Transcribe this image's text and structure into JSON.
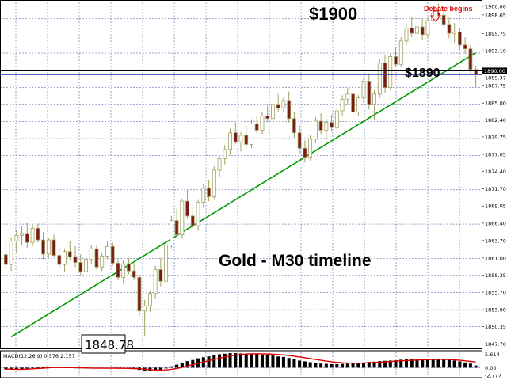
{
  "chart_data": {
    "type": "candlestick",
    "title": "Gold - M30 timeline",
    "y_axis_labels": [
      "1900.00",
      "1898.65",
      "1895.75",
      "1893.10",
      "1890.00",
      "1889.37",
      "1887.75",
      "1885.00",
      "1882.40",
      "1879.75",
      "1877.05",
      "1874.40",
      "1871.70",
      "1869.05",
      "1866.40",
      "1863.70",
      "1861.00",
      "1858.35",
      "1855.70",
      "1853.00",
      "1850.35",
      "1847.70"
    ],
    "current_price_tag": "1890.00",
    "bid_tag": "1889.37",
    "ylim": [
      1847.0,
      1900.6
    ],
    "grid": true,
    "candles": [
      [
        1861.5,
        1863.5,
        1859.5,
        1860.0
      ],
      [
        1860.0,
        1864.2,
        1859.0,
        1863.6
      ],
      [
        1863.6,
        1865.4,
        1861.8,
        1864.5
      ],
      [
        1864.5,
        1866.0,
        1863.0,
        1864.8
      ],
      [
        1864.8,
        1866.4,
        1862.6,
        1863.4
      ],
      [
        1863.4,
        1866.2,
        1862.8,
        1865.6
      ],
      [
        1865.6,
        1866.3,
        1863.4,
        1863.8
      ],
      [
        1863.8,
        1865.0,
        1860.8,
        1861.6
      ],
      [
        1861.6,
        1864.1,
        1861.0,
        1863.8
      ],
      [
        1863.8,
        1864.6,
        1861.1,
        1861.4
      ],
      [
        1861.4,
        1862.6,
        1859.4,
        1860.0
      ],
      [
        1860.0,
        1862.4,
        1858.8,
        1862.0
      ],
      [
        1862.0,
        1863.6,
        1860.7,
        1861.2
      ],
      [
        1861.2,
        1862.8,
        1859.6,
        1860.3
      ],
      [
        1860.3,
        1861.6,
        1858.4,
        1858.9
      ],
      [
        1858.9,
        1861.2,
        1858.2,
        1860.8
      ],
      [
        1860.8,
        1863.0,
        1860.0,
        1862.4
      ],
      [
        1862.4,
        1863.0,
        1859.2,
        1859.6
      ],
      [
        1859.6,
        1861.8,
        1859.0,
        1861.3
      ],
      [
        1861.3,
        1863.6,
        1860.8,
        1862.8
      ],
      [
        1862.8,
        1863.4,
        1859.8,
        1860.2
      ],
      [
        1860.2,
        1860.8,
        1857.5,
        1858.0
      ],
      [
        1858.0,
        1860.6,
        1857.0,
        1860.1
      ],
      [
        1860.1,
        1861.0,
        1858.5,
        1859.0
      ],
      [
        1859.0,
        1860.2,
        1857.5,
        1858.0
      ],
      [
        1858.0,
        1858.4,
        1852.0,
        1852.8
      ],
      [
        1852.8,
        1854.5,
        1848.8,
        1853.6
      ],
      [
        1853.6,
        1856.0,
        1852.6,
        1855.5
      ],
      [
        1855.5,
        1859.8,
        1854.6,
        1859.2
      ],
      [
        1859.2,
        1861.0,
        1856.6,
        1857.4
      ],
      [
        1857.4,
        1863.6,
        1857.0,
        1863.0
      ],
      [
        1863.0,
        1867.5,
        1862.5,
        1866.8
      ],
      [
        1866.8,
        1868.6,
        1864.0,
        1864.6
      ],
      [
        1864.6,
        1870.2,
        1864.0,
        1869.8
      ],
      [
        1869.8,
        1871.5,
        1867.0,
        1867.5
      ],
      [
        1867.5,
        1869.2,
        1865.5,
        1866.0
      ],
      [
        1866.0,
        1870.0,
        1865.2,
        1869.6
      ],
      [
        1869.6,
        1872.4,
        1868.8,
        1871.8
      ],
      [
        1871.8,
        1873.0,
        1869.8,
        1870.5
      ],
      [
        1870.5,
        1875.2,
        1870.0,
        1874.6
      ],
      [
        1874.6,
        1877.0,
        1873.6,
        1876.4
      ],
      [
        1876.4,
        1878.5,
        1875.5,
        1877.8
      ],
      [
        1877.8,
        1881.0,
        1877.0,
        1880.4
      ],
      [
        1880.4,
        1882.0,
        1878.6,
        1879.0
      ],
      [
        1879.0,
        1880.5,
        1877.5,
        1880.0
      ],
      [
        1880.0,
        1881.6,
        1878.0,
        1878.6
      ],
      [
        1878.6,
        1882.5,
        1878.0,
        1881.8
      ],
      [
        1881.8,
        1883.0,
        1880.2,
        1880.8
      ],
      [
        1880.8,
        1883.6,
        1880.2,
        1883.0
      ],
      [
        1883.0,
        1884.8,
        1882.0,
        1882.6
      ],
      [
        1882.6,
        1885.4,
        1882.0,
        1884.8
      ],
      [
        1884.8,
        1886.4,
        1883.6,
        1884.2
      ],
      [
        1884.2,
        1886.0,
        1883.6,
        1885.4
      ],
      [
        1885.4,
        1886.8,
        1882.0,
        1882.6
      ],
      [
        1882.6,
        1883.6,
        1879.6,
        1880.4
      ],
      [
        1880.4,
        1881.6,
        1877.2,
        1878.0
      ],
      [
        1878.0,
        1879.2,
        1875.8,
        1876.6
      ],
      [
        1876.6,
        1880.0,
        1876.0,
        1879.4
      ],
      [
        1879.4,
        1882.8,
        1878.8,
        1882.2
      ],
      [
        1882.2,
        1883.4,
        1880.2,
        1880.8
      ],
      [
        1880.8,
        1882.6,
        1879.4,
        1882.0
      ],
      [
        1882.0,
        1883.2,
        1880.6,
        1881.2
      ],
      [
        1881.2,
        1884.4,
        1880.6,
        1883.8
      ],
      [
        1883.8,
        1886.2,
        1883.0,
        1885.6
      ],
      [
        1885.6,
        1887.4,
        1884.8,
        1886.4
      ],
      [
        1886.4,
        1887.2,
        1883.0,
        1883.6
      ],
      [
        1883.6,
        1886.2,
        1883.0,
        1885.8
      ],
      [
        1885.8,
        1889.0,
        1885.0,
        1888.4
      ],
      [
        1888.4,
        1889.6,
        1884.0,
        1884.8
      ],
      [
        1884.8,
        1887.0,
        1882.4,
        1886.4
      ],
      [
        1886.4,
        1891.8,
        1885.8,
        1891.2
      ],
      [
        1891.2,
        1892.4,
        1886.6,
        1887.4
      ],
      [
        1887.4,
        1892.8,
        1887.0,
        1892.2
      ],
      [
        1892.2,
        1893.6,
        1890.6,
        1891.0
      ],
      [
        1891.0,
        1895.2,
        1890.6,
        1894.6
      ],
      [
        1894.6,
        1897.2,
        1894.0,
        1896.6
      ],
      [
        1896.6,
        1898.4,
        1895.2,
        1895.8
      ],
      [
        1895.8,
        1897.4,
        1894.4,
        1896.8
      ],
      [
        1896.8,
        1898.0,
        1894.8,
        1895.6
      ],
      [
        1895.6,
        1898.4,
        1895.0,
        1897.8
      ],
      [
        1897.8,
        1899.6,
        1897.2,
        1899.0
      ],
      [
        1899.0,
        1900.4,
        1898.0,
        1898.6
      ],
      [
        1898.6,
        1899.8,
        1896.6,
        1897.2
      ],
      [
        1897.2,
        1898.4,
        1895.0,
        1895.8
      ],
      [
        1895.8,
        1897.4,
        1894.4,
        1896.0
      ],
      [
        1896.0,
        1896.6,
        1893.2,
        1894.0
      ],
      [
        1894.0,
        1895.2,
        1892.6,
        1893.4
      ],
      [
        1893.4,
        1894.0,
        1889.6,
        1890.2
      ],
      [
        1890.2,
        1890.8,
        1887.4,
        1889.4
      ]
    ],
    "trendline": [
      [
        1,
        1848.78
      ],
      [
        88,
        1892.8
      ]
    ],
    "horizontal_levels": [
      1890.0,
      1889.37
    ],
    "macd": {
      "label": "MACD(12,26,9) 0.576 2.157",
      "axis_labels": [
        "5.614",
        "0.00",
        "-2.777"
      ],
      "ylim": [
        -2.777,
        5.614
      ],
      "histogram": [
        -0.6,
        -0.7,
        -0.6,
        -0.5,
        -0.3,
        -0.1,
        0.1,
        0.2,
        0.3,
        0.2,
        0.1,
        0.0,
        -0.1,
        -0.2,
        -0.2,
        -0.3,
        -0.3,
        -0.2,
        -0.2,
        -0.1,
        -0.1,
        -0.2,
        -0.3,
        -0.4,
        -0.5,
        -0.8,
        -1.2,
        -1.3,
        -1.0,
        -0.8,
        -0.3,
        0.5,
        1.1,
        1.8,
        2.4,
        2.8,
        3.4,
        3.8,
        4.1,
        4.5,
        4.9,
        5.1,
        5.3,
        5.3,
        5.2,
        5.1,
        5.0,
        4.9,
        4.8,
        4.6,
        4.4,
        4.1,
        3.9,
        3.5,
        3.0,
        2.6,
        2.3,
        2.0,
        1.7,
        1.5,
        1.4,
        1.3,
        1.3,
        1.4,
        1.5,
        1.6,
        1.8,
        1.9,
        2.1,
        2.2,
        2.4,
        2.5,
        2.6,
        2.7,
        2.9,
        3.0,
        3.1,
        3.2,
        3.2,
        3.3,
        3.3,
        3.2,
        3.1,
        2.9,
        2.6,
        2.3,
        1.9,
        1.5,
        0.8
      ],
      "signal": [
        -0.5,
        -0.55,
        -0.58,
        -0.58,
        -0.52,
        -0.42,
        -0.3,
        -0.18,
        -0.05,
        0.05,
        0.08,
        0.08,
        0.05,
        0.0,
        -0.05,
        -0.1,
        -0.15,
        -0.18,
        -0.2,
        -0.2,
        -0.2,
        -0.21,
        -0.23,
        -0.27,
        -0.32,
        -0.4,
        -0.55,
        -0.7,
        -0.8,
        -0.85,
        -0.8,
        -0.6,
        -0.3,
        0.1,
        0.6,
        1.1,
        1.6,
        2.1,
        2.6,
        3.0,
        3.5,
        3.9,
        4.3,
        4.6,
        4.8,
        5.0,
        5.05,
        5.08,
        5.05,
        5.0,
        4.9,
        4.8,
        4.65,
        4.45,
        4.2,
        3.9,
        3.6,
        3.3,
        3.0,
        2.7,
        2.4,
        2.15,
        1.95,
        1.8,
        1.7,
        1.65,
        1.65,
        1.7,
        1.8,
        1.9,
        2.0,
        2.1,
        2.25,
        2.4,
        2.5,
        2.6,
        2.7,
        2.8,
        2.9,
        2.95,
        3.0,
        3.05,
        3.0,
        2.95,
        2.85,
        2.7,
        2.5,
        2.3,
        2.1
      ]
    },
    "annotations": {
      "high": "$1900",
      "current": "$1890",
      "debate": "Debate begins",
      "low": "1848.78"
    }
  },
  "colors": {
    "candle_body": "#a0a060",
    "bull_fill": "#ffffff",
    "bear_fill": "#7a1a18",
    "trendline": "#009a00",
    "macd_hist": "#000000",
    "macd_signal": "#e00000",
    "grid": "#2d4e9a",
    "annotation_red": "#e00000"
  }
}
